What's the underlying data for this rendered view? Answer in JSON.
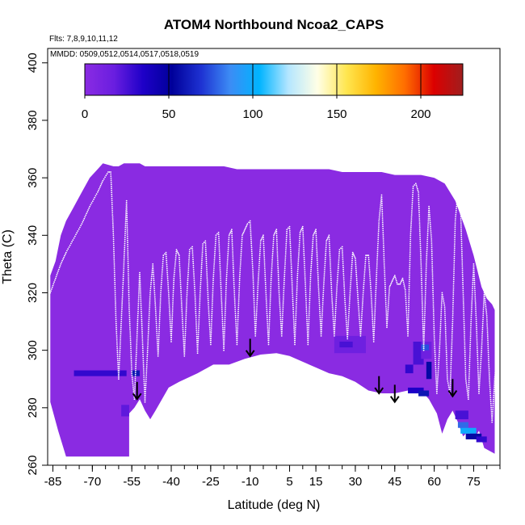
{
  "chart_data": {
    "type": "heatmap",
    "title": "ATOM4 Northbound Ncoa2_CAPS",
    "flights_note": "Flts: 7,8,9,10,11,12",
    "mmdd_note": "MMDD: 0509,0512,0514,0517,0518,0519",
    "xlabel": "Latitude (deg N)",
    "ylabel": "Theta (C)",
    "xlim": [
      -87,
      85
    ],
    "ylim": [
      260,
      405
    ],
    "x_ticks": [
      -85,
      -70,
      -55,
      -40,
      -25,
      -10,
      5,
      15,
      30,
      45,
      60,
      75
    ],
    "y_ticks": [
      260,
      280,
      300,
      320,
      340,
      360,
      380,
      400
    ],
    "colorbar": {
      "min": 0,
      "max": 225,
      "ticks": [
        0,
        50,
        100,
        150,
        200
      ],
      "colors": [
        "#8a2be2",
        "#6a1ee0",
        "#1e00c8",
        "#00009a",
        "#1e32d2",
        "#3c8cf5",
        "#00b4ff",
        "#b4e6ff",
        "#ffffe6",
        "#ffe650",
        "#ffb400",
        "#ff6e00",
        "#dc0000",
        "#a01e1e"
      ]
    },
    "background_color": "#8a2be2",
    "coverage_top": [
      [
        -86,
        326
      ],
      [
        -84,
        331
      ],
      [
        -82,
        340
      ],
      [
        -80,
        345
      ],
      [
        -77,
        350
      ],
      [
        -74,
        355
      ],
      [
        -71,
        360
      ],
      [
        -68,
        363
      ],
      [
        -66,
        365
      ],
      [
        -62,
        364
      ],
      [
        -60,
        364
      ],
      [
        -58,
        365
      ],
      [
        -52,
        365
      ],
      [
        -50,
        364
      ],
      [
        -40,
        364
      ],
      [
        -30,
        364
      ],
      [
        -20,
        364
      ],
      [
        -15,
        363
      ],
      [
        0,
        363
      ],
      [
        10,
        363
      ],
      [
        20,
        363
      ],
      [
        25,
        362
      ],
      [
        35,
        362
      ],
      [
        40,
        362
      ],
      [
        45,
        361
      ],
      [
        50,
        361
      ],
      [
        55,
        361
      ],
      [
        60,
        360
      ],
      [
        64,
        358
      ],
      [
        68,
        352
      ],
      [
        72,
        342
      ],
      [
        75,
        333
      ],
      [
        78,
        322
      ],
      [
        80,
        318
      ],
      [
        82,
        316
      ],
      [
        83,
        314
      ]
    ],
    "coverage_bottom": [
      [
        -86,
        282
      ],
      [
        -83,
        272
      ],
      [
        -80,
        263
      ],
      [
        -56,
        263
      ],
      [
        -56,
        278
      ],
      [
        -54,
        280
      ],
      [
        -52,
        283
      ],
      [
        -50,
        279
      ],
      [
        -48,
        276
      ],
      [
        -46,
        279
      ],
      [
        -41,
        287
      ],
      [
        -37,
        289
      ],
      [
        -30,
        292
      ],
      [
        -24,
        295
      ],
      [
        -18,
        295
      ],
      [
        -12,
        297
      ],
      [
        -6,
        298.5
      ],
      [
        0,
        299
      ],
      [
        5,
        298
      ],
      [
        10,
        296
      ],
      [
        15,
        294
      ],
      [
        20,
        292
      ],
      [
        25,
        291
      ],
      [
        30,
        289
      ],
      [
        35,
        286
      ],
      [
        40,
        285
      ],
      [
        45,
        285
      ],
      [
        50,
        286
      ],
      [
        55,
        286
      ],
      [
        58,
        283
      ],
      [
        61,
        278
      ],
      [
        63,
        271
      ],
      [
        65,
        276
      ],
      [
        67,
        279
      ],
      [
        69,
        275
      ],
      [
        71,
        270
      ],
      [
        73,
        272
      ],
      [
        75,
        269
      ],
      [
        77,
        272
      ],
      [
        79,
        266
      ],
      [
        83,
        264
      ]
    ],
    "highlight_cells": [
      {
        "x": -77,
        "y": 291,
        "w": 20,
        "h": 2,
        "v": 30
      },
      {
        "x": -55,
        "y": 291,
        "w": 3,
        "h": 2,
        "v": 60
      },
      {
        "x": -59,
        "y": 277,
        "w": 3,
        "h": 4,
        "v": 20
      },
      {
        "x": 22,
        "y": 299,
        "w": 12,
        "h": 6,
        "v": 15
      },
      {
        "x": 24,
        "y": 301,
        "w": 5,
        "h": 2,
        "v": 25
      },
      {
        "x": 52,
        "y": 295,
        "w": 4,
        "h": 8,
        "v": 25
      },
      {
        "x": 55,
        "y": 297,
        "w": 4,
        "h": 6,
        "v": 15
      },
      {
        "x": 49,
        "y": 292,
        "w": 3,
        "h": 3,
        "v": 30
      },
      {
        "x": 50,
        "y": 285,
        "w": 6,
        "h": 2,
        "v": 35
      },
      {
        "x": 54,
        "y": 284,
        "w": 4,
        "h": 2,
        "v": 60
      },
      {
        "x": 57,
        "y": 290,
        "w": 2,
        "h": 6,
        "v": 55
      },
      {
        "x": 55,
        "y": 300,
        "w": 3,
        "h": 2,
        "v": 75
      },
      {
        "x": 68,
        "y": 276,
        "w": 5,
        "h": 3,
        "v": 25
      },
      {
        "x": 69,
        "y": 273,
        "w": 4,
        "h": 2,
        "v": 80
      },
      {
        "x": 70,
        "y": 271,
        "w": 6,
        "h": 2,
        "v": 100
      },
      {
        "x": 72,
        "y": 269,
        "w": 6,
        "h": 2,
        "v": 55
      },
      {
        "x": 76,
        "y": 268,
        "w": 4,
        "h": 2,
        "v": 30
      }
    ],
    "flight_track_color": "#ffffff",
    "flight_track": [
      [
        -86,
        320
      ],
      [
        -84,
        325
      ],
      [
        -82,
        330
      ],
      [
        -80,
        334
      ],
      [
        -77,
        339
      ],
      [
        -74,
        344
      ],
      [
        -71,
        350
      ],
      [
        -68,
        355
      ],
      [
        -66,
        359
      ],
      [
        -64,
        362
      ],
      [
        -63,
        362
      ],
      [
        -62,
        340
      ],
      [
        -61,
        310
      ],
      [
        -60,
        290
      ],
      [
        -59,
        310
      ],
      [
        -58,
        330
      ],
      [
        -57,
        352
      ],
      [
        -56,
        315
      ],
      [
        -55,
        292
      ],
      [
        -54,
        283
      ],
      [
        -53,
        305
      ],
      [
        -52,
        327
      ],
      [
        -51,
        305
      ],
      [
        -50,
        282
      ],
      [
        -49,
        300
      ],
      [
        -48,
        320
      ],
      [
        -47,
        330
      ],
      [
        -46,
        315
      ],
      [
        -45,
        298
      ],
      [
        -44,
        320
      ],
      [
        -43,
        333
      ],
      [
        -42,
        334
      ],
      [
        -41,
        320
      ],
      [
        -40,
        303
      ],
      [
        -39,
        325
      ],
      [
        -38,
        335
      ],
      [
        -37,
        333
      ],
      [
        -36,
        315
      ],
      [
        -35,
        298
      ],
      [
        -34,
        320
      ],
      [
        -33,
        335
      ],
      [
        -32,
        336
      ],
      [
        -31,
        320
      ],
      [
        -30,
        299
      ],
      [
        -29,
        320
      ],
      [
        -28,
        337
      ],
      [
        -27,
        338
      ],
      [
        -26,
        318
      ],
      [
        -25,
        302
      ],
      [
        -24,
        325
      ],
      [
        -23,
        340
      ],
      [
        -22,
        341
      ],
      [
        -21,
        320
      ],
      [
        -20,
        300
      ],
      [
        -19,
        325
      ],
      [
        -18,
        340
      ],
      [
        -17,
        342
      ],
      [
        -16,
        320
      ],
      [
        -15,
        302
      ],
      [
        -14,
        325
      ],
      [
        -13,
        340
      ],
      [
        -12,
        342
      ],
      [
        -11,
        344
      ],
      [
        -10,
        345
      ],
      [
        -9,
        328
      ],
      [
        -8,
        305
      ],
      [
        -7,
        323
      ],
      [
        -6,
        338
      ],
      [
        -5,
        340
      ],
      [
        -4,
        320
      ],
      [
        -3,
        302
      ],
      [
        -2,
        325
      ],
      [
        -1,
        340
      ],
      [
        0,
        342
      ],
      [
        1,
        320
      ],
      [
        2,
        305
      ],
      [
        3,
        325
      ],
      [
        4,
        342
      ],
      [
        5,
        343
      ],
      [
        6,
        322
      ],
      [
        7,
        302
      ],
      [
        8,
        326
      ],
      [
        9,
        341
      ],
      [
        10,
        343
      ],
      [
        11,
        323
      ],
      [
        12,
        302
      ],
      [
        13,
        326
      ],
      [
        14,
        340
      ],
      [
        15,
        342
      ],
      [
        16,
        322
      ],
      [
        17,
        305
      ],
      [
        18,
        323
      ],
      [
        19,
        338
      ],
      [
        20,
        340
      ],
      [
        21,
        320
      ],
      [
        22,
        305
      ],
      [
        23,
        322
      ],
      [
        24,
        335
      ],
      [
        25,
        336
      ],
      [
        26,
        318
      ],
      [
        27,
        304
      ],
      [
        28,
        320
      ],
      [
        29,
        334
      ],
      [
        30,
        332
      ],
      [
        31,
        318
      ],
      [
        32,
        305
      ],
      [
        33,
        320
      ],
      [
        34,
        333
      ],
      [
        35,
        333
      ],
      [
        36,
        320
      ],
      [
        37,
        303
      ],
      [
        38,
        325
      ],
      [
        39,
        345
      ],
      [
        40,
        354
      ],
      [
        41,
        330
      ],
      [
        42,
        308
      ],
      [
        43,
        322
      ],
      [
        44,
        324
      ],
      [
        45,
        326
      ],
      [
        46,
        323
      ],
      [
        47,
        323
      ],
      [
        48,
        325
      ],
      [
        49,
        321
      ],
      [
        50,
        305
      ],
      [
        51,
        340
      ],
      [
        52,
        357
      ],
      [
        53,
        358
      ],
      [
        54,
        355
      ],
      [
        55,
        330
      ],
      [
        56,
        300
      ],
      [
        57,
        330
      ],
      [
        58,
        350
      ],
      [
        59,
        338
      ],
      [
        60,
        305
      ],
      [
        61,
        285
      ],
      [
        62,
        300
      ],
      [
        63,
        320
      ],
      [
        64,
        315
      ],
      [
        65,
        290
      ],
      [
        66,
        285
      ],
      [
        67,
        310
      ],
      [
        68,
        345
      ],
      [
        69,
        355
      ],
      [
        70,
        350
      ],
      [
        71,
        320
      ],
      [
        72,
        290
      ],
      [
        73,
        283
      ],
      [
        74,
        310
      ],
      [
        75,
        330
      ],
      [
        76,
        310
      ],
      [
        77,
        285
      ],
      [
        78,
        300
      ],
      [
        79,
        320
      ],
      [
        80,
        312
      ],
      [
        81,
        290
      ],
      [
        82,
        275
      ],
      [
        83,
        290
      ],
      [
        84,
        300
      ]
    ],
    "arrows": [
      {
        "lat": -53,
        "theta": 289
      },
      {
        "lat": -10,
        "theta": 304
      },
      {
        "lat": 39,
        "theta": 291
      },
      {
        "lat": 45,
        "theta": 288
      },
      {
        "lat": 67,
        "theta": 290
      }
    ]
  }
}
